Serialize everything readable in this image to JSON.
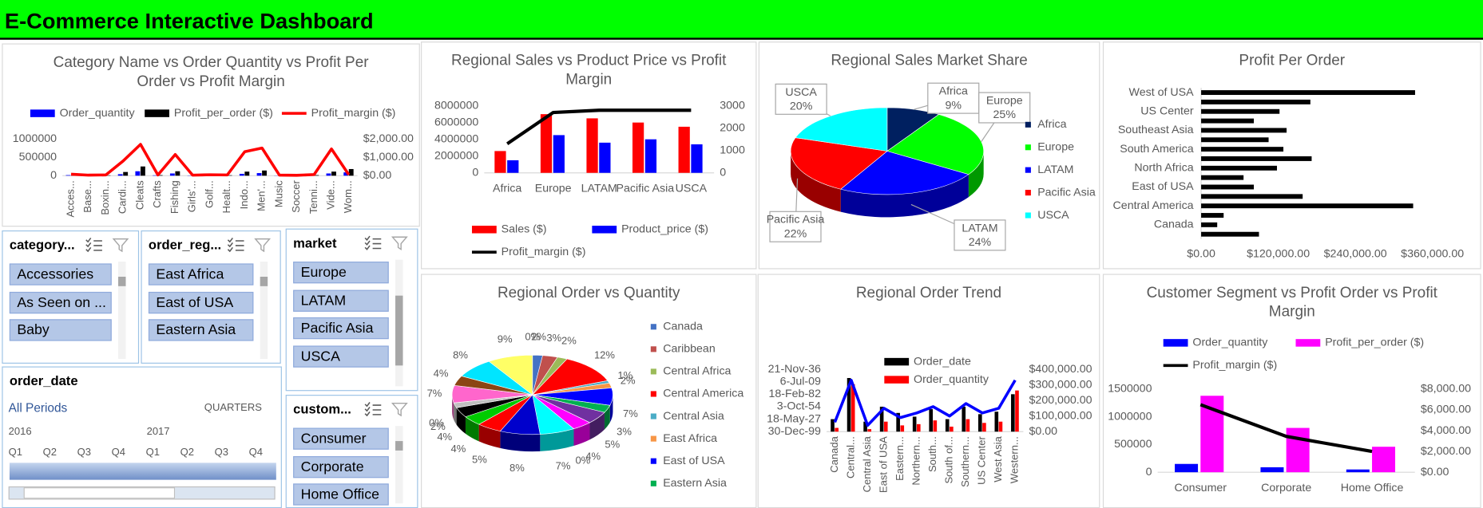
{
  "header": {
    "title": "E-Commerce Interactive Dashboard"
  },
  "chart_data": [
    {
      "type": "combo",
      "title": "Category Name vs Order Quantity vs Profit Per Order vs Profit Margin",
      "categories": [
        "Acces...",
        "Base...",
        "Boxin...",
        "Cardi...",
        "Cleats",
        "Crafts",
        "Fishing",
        "Girls'...",
        "Golf...",
        "Healt...",
        "Indo...",
        "Men'...",
        "Music",
        "Soccer",
        "Tenni...",
        "Vide...",
        "Wom..."
      ],
      "series": [
        {
          "name": "Order_quantity",
          "kind": "bar",
          "color": "#0000ff",
          "values": [
            15000,
            5000,
            8000,
            40000,
            120000,
            10000,
            60000,
            6000,
            12000,
            9000,
            50000,
            70000,
            4000,
            8000,
            10000,
            60000,
            90000
          ]
        },
        {
          "name": "Profit_per_order ($)",
          "kind": "bar",
          "color": "#000000",
          "values": [
            30000,
            8000,
            10000,
            100000,
            250000,
            15000,
            120000,
            9000,
            20000,
            12000,
            110000,
            140000,
            6000,
            12000,
            15000,
            110000,
            180000
          ]
        },
        {
          "name": "Profit_margin ($)",
          "kind": "line",
          "axis": "y2",
          "color": "#ff0000",
          "values": [
            80,
            30,
            40,
            800,
            1700,
            40,
            1150,
            30,
            50,
            40,
            1300,
            1500,
            30,
            20,
            60,
            1450,
            50
          ]
        }
      ],
      "ylim": [
        0,
        1000000
      ],
      "yticks": [
        0,
        500000,
        1000000
      ],
      "y2lim": [
        0,
        2000
      ],
      "y2ticks": [
        {
          "value": 0,
          "label": "$0.00"
        },
        {
          "value": 1000,
          "label": "$1,000.00"
        },
        {
          "value": 2000,
          "label": "$2,000.00"
        }
      ]
    },
    {
      "type": "combo",
      "title": "Regional Sales vs Product Price vs Profit Margin",
      "categories": [
        "Africa",
        "Europe",
        "LATAM",
        "Pacific Asia",
        "USCA"
      ],
      "series": [
        {
          "name": "Sales ($)",
          "kind": "bar",
          "color": "#ff0000",
          "values": [
            2600000,
            7000000,
            6500000,
            6000000,
            5500000
          ]
        },
        {
          "name": "Product_price ($)",
          "kind": "bar",
          "color": "#0000ff",
          "values": [
            1500000,
            4500000,
            3600000,
            4000000,
            3400000
          ]
        },
        {
          "name": "Profit_margin ($)",
          "kind": "line",
          "axis": "y2",
          "color": "#000000",
          "values": [
            1300,
            2700,
            2800,
            2800,
            2800
          ]
        }
      ],
      "ylim": [
        0,
        8000000
      ],
      "yticks": [
        0,
        2000000,
        4000000,
        6000000,
        8000000
      ],
      "y2lim": [
        0,
        3000
      ],
      "y2ticks": [
        0,
        1000,
        2000,
        3000
      ]
    },
    {
      "type": "pie",
      "title": "Regional Sales Market Share",
      "3d": true,
      "categories": [
        "Africa",
        "Europe",
        "LATAM",
        "Pacific Asia",
        "USCA"
      ],
      "values": [
        9,
        25,
        24,
        22,
        20
      ],
      "value_labels": [
        "9%",
        "25%",
        "24%",
        "22%",
        "20%"
      ],
      "colors": [
        "#002060",
        "#00ff00",
        "#0000ff",
        "#ff0000",
        "#00ffff"
      ]
    },
    {
      "type": "barh",
      "title": "Profit Per Order",
      "categories": [
        "West of USA",
        null,
        "US Center",
        null,
        "Southeast Asia",
        null,
        "South America",
        null,
        "North Africa",
        null,
        "East of USA",
        null,
        "Central America",
        null,
        "Canada",
        null
      ],
      "values": [
        333000,
        170000,
        122000,
        82000,
        133000,
        105000,
        128000,
        172000,
        118000,
        66000,
        82000,
        158000,
        330000,
        35000,
        25000,
        90000
      ],
      "color": "#000000",
      "xlim": [
        0,
        400000
      ],
      "xticks": [
        {
          "value": 0,
          "label": "$0.00"
        },
        {
          "value": 120000,
          "label": "$120,000.00"
        },
        {
          "value": 240000,
          "label": "$240,000.00"
        },
        {
          "value": 360000,
          "label": "$360,000.00"
        }
      ]
    },
    {
      "type": "pie",
      "title": "Regional Order vs Quantity",
      "3d": true,
      "categories": [
        "Canada",
        "Caribbean",
        "Central Africa",
        "Central America",
        "Central Asia",
        "East Africa",
        "East of USA",
        "Eastern Asia",
        null,
        null,
        null,
        null,
        null,
        null,
        null,
        null,
        null,
        null,
        null,
        null,
        null,
        null,
        null
      ],
      "values": [
        2,
        3,
        2,
        12,
        1,
        2,
        7,
        3,
        5,
        4,
        0,
        7,
        8,
        5,
        4,
        4,
        2,
        0,
        7,
        4,
        8,
        9,
        0
      ],
      "value_labels": [
        "2%",
        "3%",
        "2%",
        "12%",
        "1%",
        "2%",
        "7%",
        "3%",
        "5%",
        "4%",
        "0%",
        "7%",
        "8%",
        "5%",
        "4%",
        "4%",
        "2%",
        "0%",
        "7%",
        "4%",
        "8%",
        "9%",
        "0%"
      ],
      "colors": [
        "#4472c4",
        "#c0504d",
        "#9bbb59",
        "#ff0000",
        "#4bacc6",
        "#f79646",
        "#0000ff",
        "#00b050",
        "#7030a0",
        "#ff00ff",
        "#808080",
        "#00ffff",
        "#0000cc",
        "#ff0000",
        "#00cc00",
        "#000000",
        "#c0c0c0",
        "#ffff00",
        "#ff66cc",
        "#8b4513",
        "#00e5ff",
        "#ffff66",
        "#ff00ff"
      ]
    },
    {
      "type": "combo",
      "title": "Regional Order Trend",
      "categories": [
        "Canada",
        "Central...",
        "Central Asia",
        "East of USA",
        "Eastern...",
        "Northern...",
        "South...",
        "South of...",
        "Southern...",
        "US Center",
        "West Asia",
        "Western..."
      ],
      "series": [
        {
          "name": "Order_date",
          "kind": "bar",
          "color": "#000000",
          "values": [
            10000,
            43000,
            8000,
            20000,
            15000,
            12000,
            18000,
            10000,
            20000,
            14000,
            16000,
            30000
          ]
        },
        {
          "name": "Order_quantity",
          "kind": "bar",
          "color": "#ff0000",
          "values": [
            3000,
            38000,
            2000,
            8000,
            5000,
            6000,
            9000,
            4000,
            10000,
            7000,
            8000,
            33000
          ]
        },
        {
          "kind": "line",
          "axis": "y2",
          "color": "#0000ff",
          "values": [
            60000,
            330000,
            40000,
            150000,
            90000,
            120000,
            160000,
            100000,
            180000,
            120000,
            150000,
            330000
          ]
        }
      ],
      "ylim": [
        0,
        50000
      ],
      "yticks": [
        {
          "value": 0,
          "label": "30-Dec-99"
        },
        {
          "value": 10000,
          "label": "18-May-27"
        },
        {
          "value": 20000,
          "label": "3-Oct-54"
        },
        {
          "value": 30000,
          "label": "18-Feb-82"
        },
        {
          "value": 40000,
          "label": "6-Jul-09"
        },
        {
          "value": 50000,
          "label": "21-Nov-36"
        }
      ],
      "y2lim": [
        0,
        400000
      ],
      "y2ticks": [
        {
          "value": 0,
          "label": "$0.00"
        },
        {
          "value": 100000,
          "label": "$100,000.00"
        },
        {
          "value": 200000,
          "label": "$200,000.00"
        },
        {
          "value": 300000,
          "label": "$300,000.00"
        },
        {
          "value": 400000,
          "label": "$400,000.00"
        }
      ]
    },
    {
      "type": "combo",
      "title": "Customer Segment vs Profit Order vs Profit Margin",
      "categories": [
        "Consumer",
        "Corporate",
        "Home Office"
      ],
      "series": [
        {
          "name": "Order_quantity",
          "kind": "bar",
          "color": "#0000ff",
          "values": [
            150000,
            90000,
            50000
          ]
        },
        {
          "name": "Profit_per_order ($)",
          "kind": "bar",
          "color": "#ff00ff",
          "values": [
            1380000,
            800000,
            460000
          ]
        },
        {
          "name": "Profit_margin ($)",
          "kind": "line",
          "axis": "y2",
          "color": "#000000",
          "values": [
            6500,
            3450,
            2000
          ]
        }
      ],
      "ylim": [
        0,
        1500000
      ],
      "yticks": [
        0,
        500000,
        1000000,
        1500000
      ],
      "y2lim": [
        0,
        8000
      ],
      "y2ticks": [
        {
          "value": 0,
          "label": "$0.00"
        },
        {
          "value": 2000,
          "label": "$2,000.00"
        },
        {
          "value": 4000,
          "label": "$4,000.00"
        },
        {
          "value": 6000,
          "label": "$6,000.00"
        },
        {
          "value": 8000,
          "label": "$8,000.00"
        }
      ]
    }
  ],
  "slicers": [
    {
      "title": "category...",
      "items": [
        "Accessories",
        "As Seen on ...",
        "Baby"
      ]
    },
    {
      "title": "order_reg...",
      "items": [
        "East Africa",
        "East of USA",
        "Eastern Asia"
      ]
    },
    {
      "title": "market",
      "items": [
        "Europe",
        "LATAM",
        "Pacific Asia",
        "USCA"
      ]
    },
    {
      "title": "custom...",
      "items": [
        "Consumer",
        "Corporate",
        "Home Office"
      ]
    }
  ],
  "timeline": {
    "title": "order_date",
    "period": "All Periods",
    "level": "QUARTERS",
    "years": [
      2016,
      2017
    ],
    "quarters": [
      "Q1",
      "Q2",
      "Q3",
      "Q4",
      "Q1",
      "Q2",
      "Q3",
      "Q4"
    ]
  }
}
